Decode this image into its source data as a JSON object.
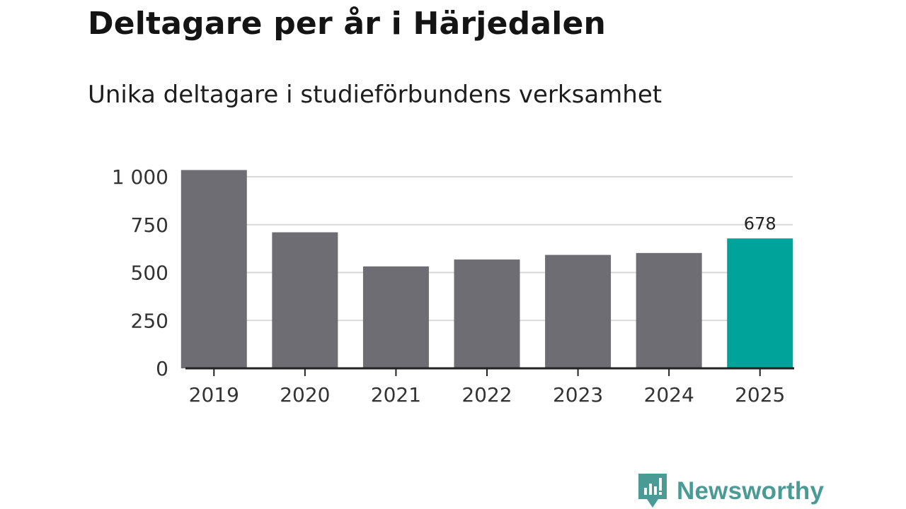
{
  "title": "Deltagare per år i Härjedalen",
  "subtitle": "Unika deltagare i studieförbundens verksamhet",
  "brand": {
    "name": "Newsworthy",
    "icon": "newsworthy-logo-icon",
    "color": "#4a9a95"
  },
  "colors": {
    "bar": "#6e6d73",
    "highlight": "#00a39a",
    "grid": "#d9d9d9",
    "axis": "#222222"
  },
  "chart_data": {
    "type": "bar",
    "categories": [
      "2019",
      "2020",
      "2021",
      "2022",
      "2023",
      "2024",
      "2025"
    ],
    "values": [
      1035,
      710,
      532,
      568,
      592,
      602,
      678
    ],
    "highlight_index": 6,
    "data_labels": [
      {
        "index": 6,
        "text": "678"
      }
    ],
    "yticks": [
      0,
      250,
      500,
      750,
      1000
    ],
    "ytick_labels": [
      "0",
      "250",
      "500",
      "750",
      "1 000"
    ],
    "ylim": [
      0,
      1000
    ],
    "grid": true,
    "legend": "none"
  }
}
